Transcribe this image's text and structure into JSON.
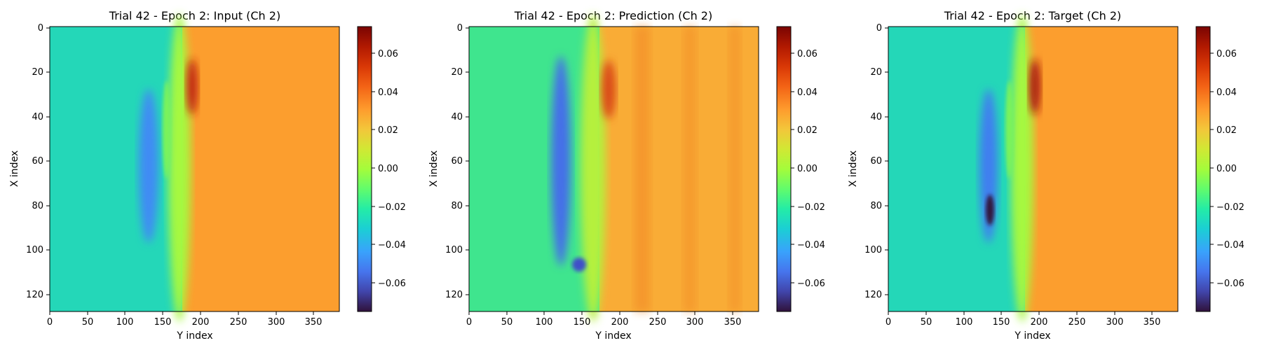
{
  "figure": {
    "panels": [
      {
        "title": "Trial 42 - Epoch 2: Input (Ch 2)"
      },
      {
        "title": "Trial 42 - Epoch 2: Prediction (Ch 2)"
      },
      {
        "title": "Trial 42 - Epoch 2: Target (Ch 2)"
      }
    ]
  },
  "chart_data": [
    {
      "type": "heatmap",
      "title": "Trial 42 - Epoch 2: Input (Ch 2)",
      "xlabel": "Y index",
      "ylabel": "X index",
      "xlim": [
        0,
        384
      ],
      "ylim": [
        128,
        0
      ],
      "xticks": [
        "0",
        "50",
        "100",
        "150",
        "200",
        "250",
        "300",
        "350"
      ],
      "yticks": [
        "0",
        "20",
        "40",
        "60",
        "80",
        "100",
        "120"
      ],
      "colorbar": {
        "min": -0.075,
        "max": 0.074,
        "ticks": [
          "0.06",
          "0.04",
          "0.02",
          "0.00",
          "−0.02",
          "−0.04",
          "−0.06"
        ],
        "colormap": "turbo"
      },
      "features": {
        "front_y": 176,
        "left_level": -0.025,
        "right_level": 0.032,
        "blue_band": {
          "y": 130,
          "x_range": [
            30,
            95
          ],
          "value": -0.048
        },
        "hot_spot": {
          "y": 185,
          "x": 30,
          "value": 0.07
        }
      }
    },
    {
      "type": "heatmap",
      "title": "Trial 42 - Epoch 2: Prediction (Ch 2)",
      "xlabel": "Y index",
      "ylabel": "X index",
      "xlim": [
        0,
        384
      ],
      "ylim": [
        128,
        0
      ],
      "xticks": [
        "0",
        "50",
        "100",
        "150",
        "200",
        "250",
        "300",
        "350"
      ],
      "yticks": [
        "0",
        "20",
        "40",
        "60",
        "80",
        "100",
        "120"
      ],
      "colorbar": {
        "min": -0.075,
        "max": 0.074,
        "ticks": [
          "0.06",
          "0.04",
          "0.02",
          "0.00",
          "−0.02",
          "−0.04",
          "−0.06"
        ],
        "colormap": "turbo"
      },
      "features": {
        "front_y": 172,
        "left_level": -0.012,
        "right_level": 0.03,
        "blue_band": {
          "y": 120,
          "x_range": [
            10,
            110
          ],
          "value": -0.055
        },
        "hot_spot": {
          "y": 182,
          "x": 30,
          "value": 0.055
        }
      }
    },
    {
      "type": "heatmap",
      "title": "Trial 42 - Epoch 2: Target (Ch 2)",
      "xlabel": "Y index",
      "ylabel": "X index",
      "xlim": [
        0,
        384
      ],
      "ylim": [
        128,
        0
      ],
      "xticks": [
        "0",
        "50",
        "100",
        "150",
        "200",
        "250",
        "300",
        "350"
      ],
      "yticks": [
        "0",
        "20",
        "40",
        "60",
        "80",
        "100",
        "120"
      ],
      "colorbar": {
        "min": -0.075,
        "max": 0.074,
        "ticks": [
          "0.06",
          "0.04",
          "0.02",
          "0.00",
          "−0.02",
          "−0.04",
          "−0.06"
        ],
        "colormap": "turbo"
      },
      "features": {
        "front_y": 180,
        "left_level": -0.025,
        "right_level": 0.032,
        "blue_band": {
          "y": 132,
          "x_range": [
            15,
            95
          ],
          "value": -0.06
        },
        "hot_spot": {
          "y": 188,
          "x": 30,
          "value": 0.074
        }
      }
    }
  ]
}
